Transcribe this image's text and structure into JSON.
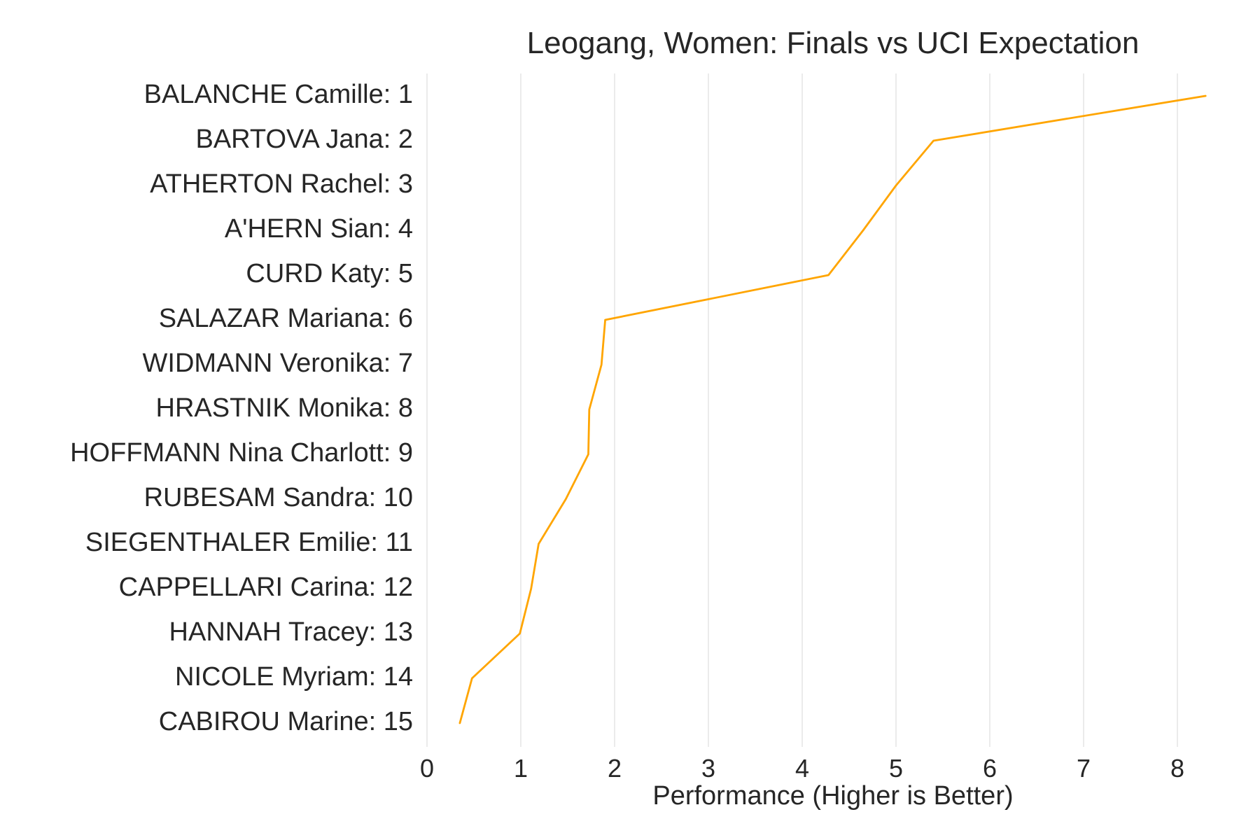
{
  "chart_data": {
    "type": "line",
    "title": "Leogang, Women: Finals vs UCI Expectation",
    "xlabel": "Performance (Higher is Better)",
    "ylabel": "",
    "xlim": [
      0,
      8.3
    ],
    "x_ticks": [
      "0",
      "1",
      "2",
      "3",
      "4",
      "5",
      "6",
      "7",
      "8"
    ],
    "grid": "vertical",
    "categories": [
      "BALANCHE Camille: 1",
      "BARTOVA Jana: 2",
      "ATHERTON Rachel: 3",
      "A'HERN Sian: 4",
      "CURD Katy: 5",
      "SALAZAR Mariana: 6",
      "WIDMANN Veronika: 7",
      "HRASTNIK Monika: 8",
      "HOFFMANN Nina Charlott: 9",
      "RUBESAM Sandra: 10",
      "SIEGENTHALER Emilie: 11",
      "CAPPELLARI Carina: 12",
      "HANNAH Tracey: 13",
      "NICOLE Myriam: 14",
      "CABIROU Marine: 15"
    ],
    "values": [
      8.3,
      5.4,
      5.0,
      4.65,
      4.28,
      1.9,
      1.86,
      1.73,
      1.72,
      1.48,
      1.19,
      1.11,
      0.99,
      0.48,
      0.35
    ],
    "colors": {
      "line": "#ffa500",
      "grid": "#ebebeb",
      "text": "#262626"
    }
  }
}
